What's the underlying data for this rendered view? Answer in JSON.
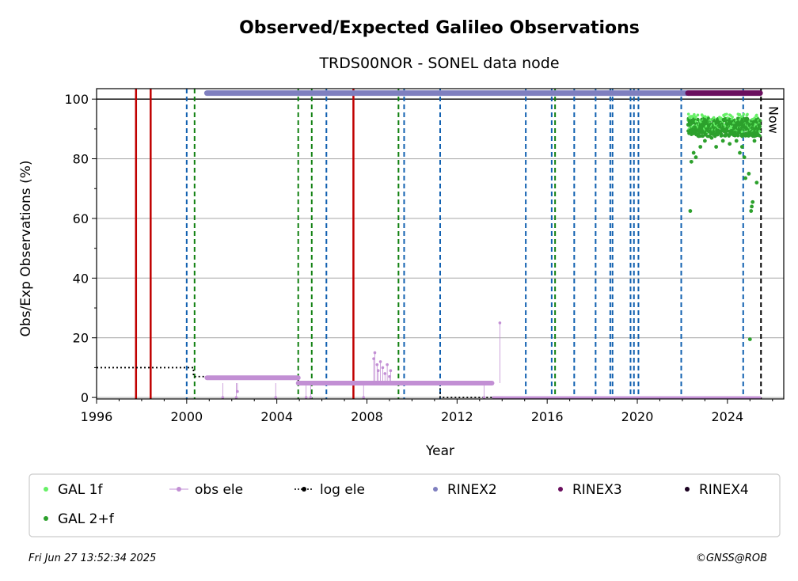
{
  "chart_data": {
    "type": "scatter",
    "title": "Observed/Expected Galileo Observations",
    "subtitle": "TRDS00NOR - SONEL data node",
    "xlabel": "Year",
    "ylabel": "Obs/Exp Observations (%)",
    "xlim": [
      1996,
      2026.5
    ],
    "ylim": [
      -0.5,
      103.5
    ],
    "x_ticks": [
      1996,
      2000,
      2004,
      2008,
      2012,
      2016,
      2020,
      2024
    ],
    "y_ticks": [
      0,
      20,
      40,
      60,
      80,
      100
    ],
    "grid": "horizontal",
    "reference_line_y": 100,
    "now_label": "Now",
    "now_year": 2025.49,
    "red_lines": [
      1997.75,
      1998.4,
      2007.4
    ],
    "green_dashed_lines": [
      2000.35,
      2004.95,
      2005.55,
      2009.4,
      2016.35
    ],
    "blue_dashed_lines": [
      2000.0,
      2006.2,
      2009.65,
      2011.25,
      2015.05,
      2016.2,
      2017.2,
      2018.15,
      2018.8,
      2018.9,
      2019.7,
      2019.85,
      2020.05,
      2021.95,
      2024.7
    ],
    "series": [
      {
        "name": "log ele",
        "color": "#000000",
        "style": "dotted-step",
        "points": [
          [
            1996,
            10
          ],
          [
            2000.3,
            10
          ],
          [
            2000.3,
            7
          ],
          [
            2004.95,
            7
          ],
          [
            2004.95,
            5
          ],
          [
            2011.25,
            5
          ],
          [
            2011.25,
            0
          ],
          [
            2025.49,
            0
          ]
        ]
      },
      {
        "name": "obs ele",
        "color": "#c28fd4",
        "segments": [
          {
            "start": 2000.9,
            "end": 2004.95,
            "value": 6.6
          },
          {
            "start": 2004.95,
            "end": 2013.55,
            "value": 4.8
          },
          {
            "start": 2013.6,
            "end": 2025.45,
            "value": 0
          }
        ],
        "outliers": [
          [
            2001.6,
            0
          ],
          [
            2002.2,
            0
          ],
          [
            2002.25,
            2
          ],
          [
            2003.95,
            0
          ],
          [
            2005.3,
            0
          ],
          [
            2005.5,
            0
          ],
          [
            2007.85,
            0
          ],
          [
            2008.3,
            13
          ],
          [
            2008.35,
            15
          ],
          [
            2008.45,
            11
          ],
          [
            2008.5,
            9
          ],
          [
            2008.6,
            12
          ],
          [
            2008.7,
            10
          ],
          [
            2008.8,
            8
          ],
          [
            2008.9,
            11
          ],
          [
            2009.0,
            7
          ],
          [
            2009.05,
            9
          ],
          [
            2013.2,
            0
          ],
          [
            2013.9,
            25
          ]
        ]
      },
      {
        "name": "RINEX2",
        "color": "#7f7fbf",
        "bar": {
          "start": 2000.9,
          "end": 2022.2,
          "y": 102
        }
      },
      {
        "name": "RINEX3",
        "color": "#6a0e5e",
        "bar": {
          "start": 2022.25,
          "end": 2025.45,
          "y": 102
        }
      },
      {
        "name": "RINEX4",
        "color": "#1a0020"
      },
      {
        "name": "GAL 1f",
        "color": "#66f066"
      },
      {
        "name": "GAL 2+f",
        "color": "#2ca02c",
        "start": 2022.25,
        "end": 2025.45,
        "band_center": 90.5,
        "band_spread": 3.0,
        "outliers": [
          [
            2022.35,
            62.5
          ],
          [
            2022.4,
            79
          ],
          [
            2022.5,
            82
          ],
          [
            2022.6,
            80.5
          ],
          [
            2022.8,
            84
          ],
          [
            2023.0,
            86
          ],
          [
            2023.3,
            87
          ],
          [
            2023.5,
            84
          ],
          [
            2023.8,
            86
          ],
          [
            2024.1,
            85
          ],
          [
            2024.4,
            86
          ],
          [
            2024.55,
            82
          ],
          [
            2024.65,
            84
          ],
          [
            2024.75,
            80.5
          ],
          [
            2024.8,
            73.5
          ],
          [
            2024.95,
            75
          ],
          [
            2025.0,
            19.5
          ],
          [
            2025.05,
            62.5
          ],
          [
            2025.08,
            64
          ],
          [
            2025.12,
            65.5
          ],
          [
            2025.2,
            86
          ],
          [
            2025.3,
            72
          ]
        ]
      }
    ],
    "legend": {
      "placement": "bottom",
      "entries": [
        {
          "label": "GAL 1f",
          "color": "#66f066",
          "kind": "dot"
        },
        {
          "label": "obs ele",
          "color": "#c28fd4",
          "kind": "line-dot"
        },
        {
          "label": "log ele",
          "color": "#000000",
          "kind": "dotted-dot"
        },
        {
          "label": "RINEX2",
          "color": "#7f7fbf",
          "kind": "dot"
        },
        {
          "label": "RINEX3",
          "color": "#6a0e5e",
          "kind": "dot"
        },
        {
          "label": "RINEX4",
          "color": "#1a0020",
          "kind": "dot"
        },
        {
          "label": "GAL 2+f",
          "color": "#2ca02c",
          "kind": "dot"
        }
      ]
    }
  },
  "footer": {
    "timestamp": "Fri Jun 27 13:52:34 2025",
    "credit": "©GNSS@ROB"
  }
}
